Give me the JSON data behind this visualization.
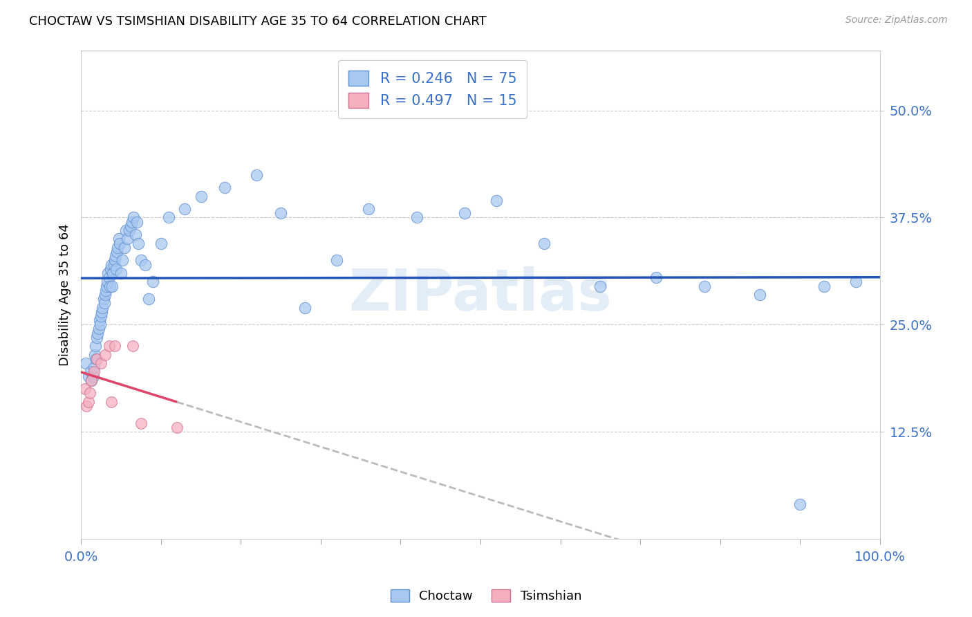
{
  "title": "CHOCTAW VS TSIMSHIAN DISABILITY AGE 35 TO 64 CORRELATION CHART",
  "source": "Source: ZipAtlas.com",
  "ylabel": "Disability Age 35 to 64",
  "ytick_labels": [
    "12.5%",
    "25.0%",
    "37.5%",
    "50.0%"
  ],
  "ytick_values": [
    0.125,
    0.25,
    0.375,
    0.5
  ],
  "xlim": [
    0.0,
    1.0
  ],
  "ylim": [
    0.0,
    0.57
  ],
  "choctaw_color": "#A8C8F0",
  "choctaw_edge": "#6090D0",
  "tsimshian_color": "#F5B0C0",
  "tsimshian_edge": "#D07090",
  "trend_blue": "#2255BB",
  "trend_pink": "#E04468",
  "trend_dashed": "#BBBBBB",
  "R_choctaw": 0.246,
  "N_choctaw": 75,
  "R_tsimshian": 0.497,
  "N_tsimshian": 15,
  "choctaw_x": [
    0.006,
    0.009,
    0.012,
    0.013,
    0.015,
    0.016,
    0.017,
    0.018,
    0.019,
    0.02,
    0.021,
    0.022,
    0.023,
    0.024,
    0.025,
    0.026,
    0.027,
    0.028,
    0.029,
    0.03,
    0.031,
    0.032,
    0.033,
    0.034,
    0.035,
    0.036,
    0.037,
    0.038,
    0.039,
    0.04,
    0.041,
    0.042,
    0.043,
    0.044,
    0.045,
    0.046,
    0.047,
    0.048,
    0.05,
    0.052,
    0.054,
    0.056,
    0.058,
    0.06,
    0.062,
    0.064,
    0.066,
    0.068,
    0.07,
    0.072,
    0.075,
    0.08,
    0.085,
    0.09,
    0.1,
    0.11,
    0.13,
    0.15,
    0.18,
    0.22,
    0.25,
    0.28,
    0.32,
    0.36,
    0.42,
    0.48,
    0.52,
    0.58,
    0.65,
    0.72,
    0.78,
    0.85,
    0.9,
    0.93,
    0.97
  ],
  "choctaw_y": [
    0.205,
    0.19,
    0.195,
    0.185,
    0.19,
    0.2,
    0.215,
    0.225,
    0.21,
    0.235,
    0.24,
    0.245,
    0.255,
    0.25,
    0.26,
    0.265,
    0.27,
    0.28,
    0.275,
    0.285,
    0.29,
    0.295,
    0.3,
    0.31,
    0.305,
    0.295,
    0.315,
    0.32,
    0.295,
    0.31,
    0.32,
    0.325,
    0.33,
    0.315,
    0.335,
    0.34,
    0.35,
    0.345,
    0.31,
    0.325,
    0.34,
    0.36,
    0.35,
    0.36,
    0.365,
    0.37,
    0.375,
    0.355,
    0.37,
    0.345,
    0.325,
    0.32,
    0.28,
    0.3,
    0.345,
    0.375,
    0.385,
    0.4,
    0.41,
    0.425,
    0.38,
    0.27,
    0.325,
    0.385,
    0.375,
    0.38,
    0.395,
    0.345,
    0.295,
    0.305,
    0.295,
    0.285,
    0.04,
    0.295,
    0.3
  ],
  "tsimshian_x": [
    0.005,
    0.007,
    0.009,
    0.011,
    0.013,
    0.016,
    0.02,
    0.025,
    0.03,
    0.035,
    0.038,
    0.042,
    0.065,
    0.075,
    0.12
  ],
  "tsimshian_y": [
    0.175,
    0.155,
    0.16,
    0.17,
    0.185,
    0.195,
    0.21,
    0.205,
    0.215,
    0.225,
    0.16,
    0.225,
    0.225,
    0.135,
    0.13
  ],
  "watermark": "ZIPatlas",
  "marker_size": 140,
  "tsimshian_marker_size": 130,
  "xtick_positions": [
    0.0,
    0.1,
    0.2,
    0.3,
    0.4,
    0.5,
    0.6,
    0.7,
    0.8,
    0.9,
    1.0
  ]
}
